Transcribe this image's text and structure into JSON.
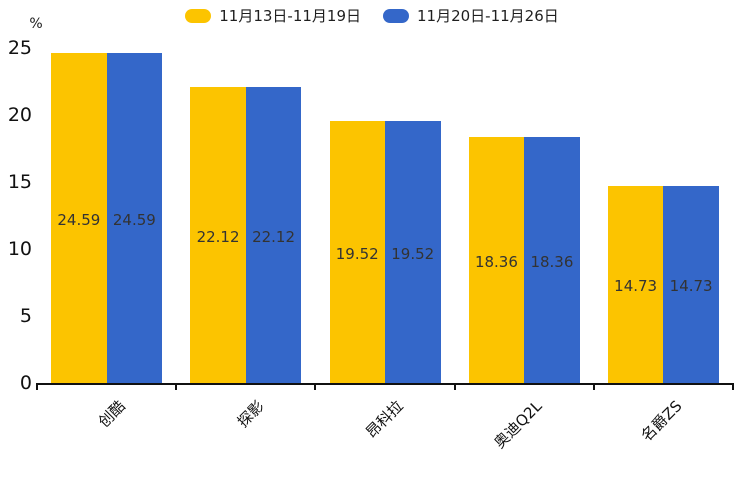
{
  "chart_data": {
    "type": "bar",
    "title": "",
    "xlabel": "",
    "ylabel": "%",
    "ylim": [
      0,
      25
    ],
    "yticks": [
      0,
      5,
      10,
      15,
      20,
      25
    ],
    "grid": false,
    "legend_position": "top",
    "value_labels": "inside",
    "value_label_color": "#333333",
    "axis_color": "#111111",
    "background_color": "#ffffff",
    "categories": [
      "创酷",
      "探影",
      "昂科拉",
      "奥迪Q2L",
      "名爵ZS"
    ],
    "series": [
      {
        "name": "11月13日-11月19日",
        "color": "#FCC400",
        "values": [
          24.59,
          22.12,
          19.52,
          18.36,
          14.73
        ]
      },
      {
        "name": "11月20日-11月26日",
        "color": "#3467C9",
        "values": [
          24.59,
          22.12,
          19.52,
          18.36,
          14.73
        ]
      }
    ]
  }
}
